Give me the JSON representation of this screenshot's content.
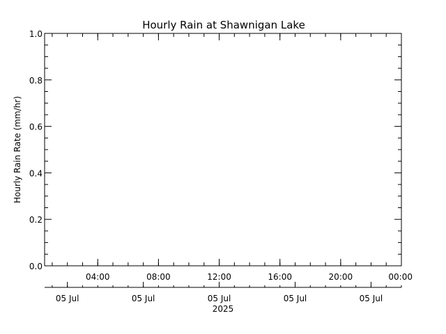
{
  "chart_data": {
    "type": "line",
    "title": "Hourly Rain at Shawnigan Lake",
    "ylabel": "Hourly Rain Rate (mm/hr)",
    "xlabel": "",
    "ylim": [
      0.0,
      1.0
    ],
    "yticks": [
      "0.0",
      "0.2",
      "0.4",
      "0.6",
      "0.8",
      "1.0"
    ],
    "xlim": [
      "2025-07-05 00:30",
      "2025-07-06 00:00"
    ],
    "time_ticks": [
      {
        "time": "2025-07-05 04:00",
        "label": "04:00"
      },
      {
        "time": "2025-07-05 08:00",
        "label": "08:00"
      },
      {
        "time": "2025-07-05 12:00",
        "label": "12:00"
      },
      {
        "time": "2025-07-05 16:00",
        "label": "16:00"
      },
      {
        "time": "2025-07-05 20:00",
        "label": "20:00"
      },
      {
        "time": "2025-07-06 00:00",
        "label": "00:00"
      }
    ],
    "date_ticks": [
      {
        "time": "2025-07-05 02:00",
        "label": "05 Jul"
      },
      {
        "time": "2025-07-05 07:00",
        "label": "05 Jul"
      },
      {
        "time": "2025-07-05 12:00",
        "label": "05 Jul"
      },
      {
        "time": "2025-07-05 17:00",
        "label": "05 Jul"
      },
      {
        "time": "2025-07-05 22:00",
        "label": "05 Jul"
      }
    ],
    "year_label": "2025",
    "grid": false,
    "colors": {
      "axes": "#000000",
      "background": "#ffffff"
    },
    "series": []
  }
}
